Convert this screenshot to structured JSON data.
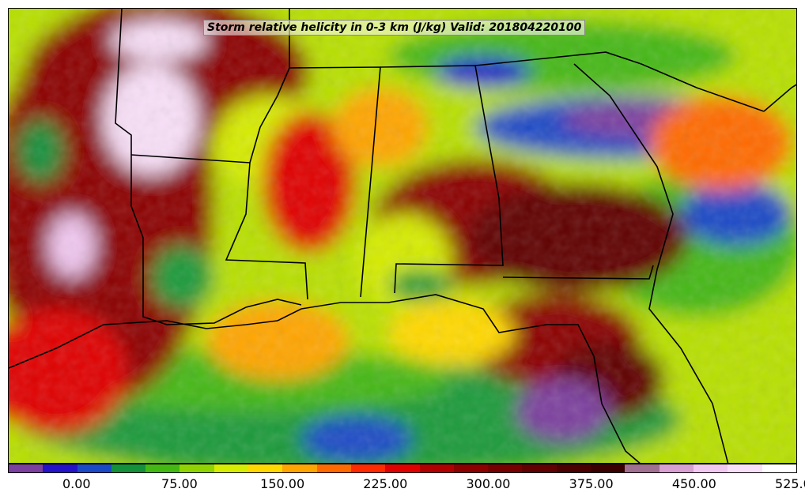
{
  "title": "Storm relative helicity in 0-3 km (J/kg) Valid: 201804220100",
  "colorbar": {
    "colors": [
      "#7b3f9e",
      "#2412c8",
      "#1a49c6",
      "#148f3a",
      "#44b812",
      "#8fd400",
      "#d6ec00",
      "#ffd800",
      "#ffa500",
      "#ff6a00",
      "#ff2a00",
      "#e00000",
      "#b00000",
      "#8c0000",
      "#760000",
      "#600000",
      "#4a0000",
      "#3a0000",
      "#a07090",
      "#d7a0d0",
      "#f0c8f0",
      "#f8e0f8",
      "#ffffff"
    ],
    "tick_labels": [
      "0.00",
      "75.00",
      "150.00",
      "225.00",
      "300.00",
      "375.00",
      "450.00",
      "525.00"
    ]
  }
}
